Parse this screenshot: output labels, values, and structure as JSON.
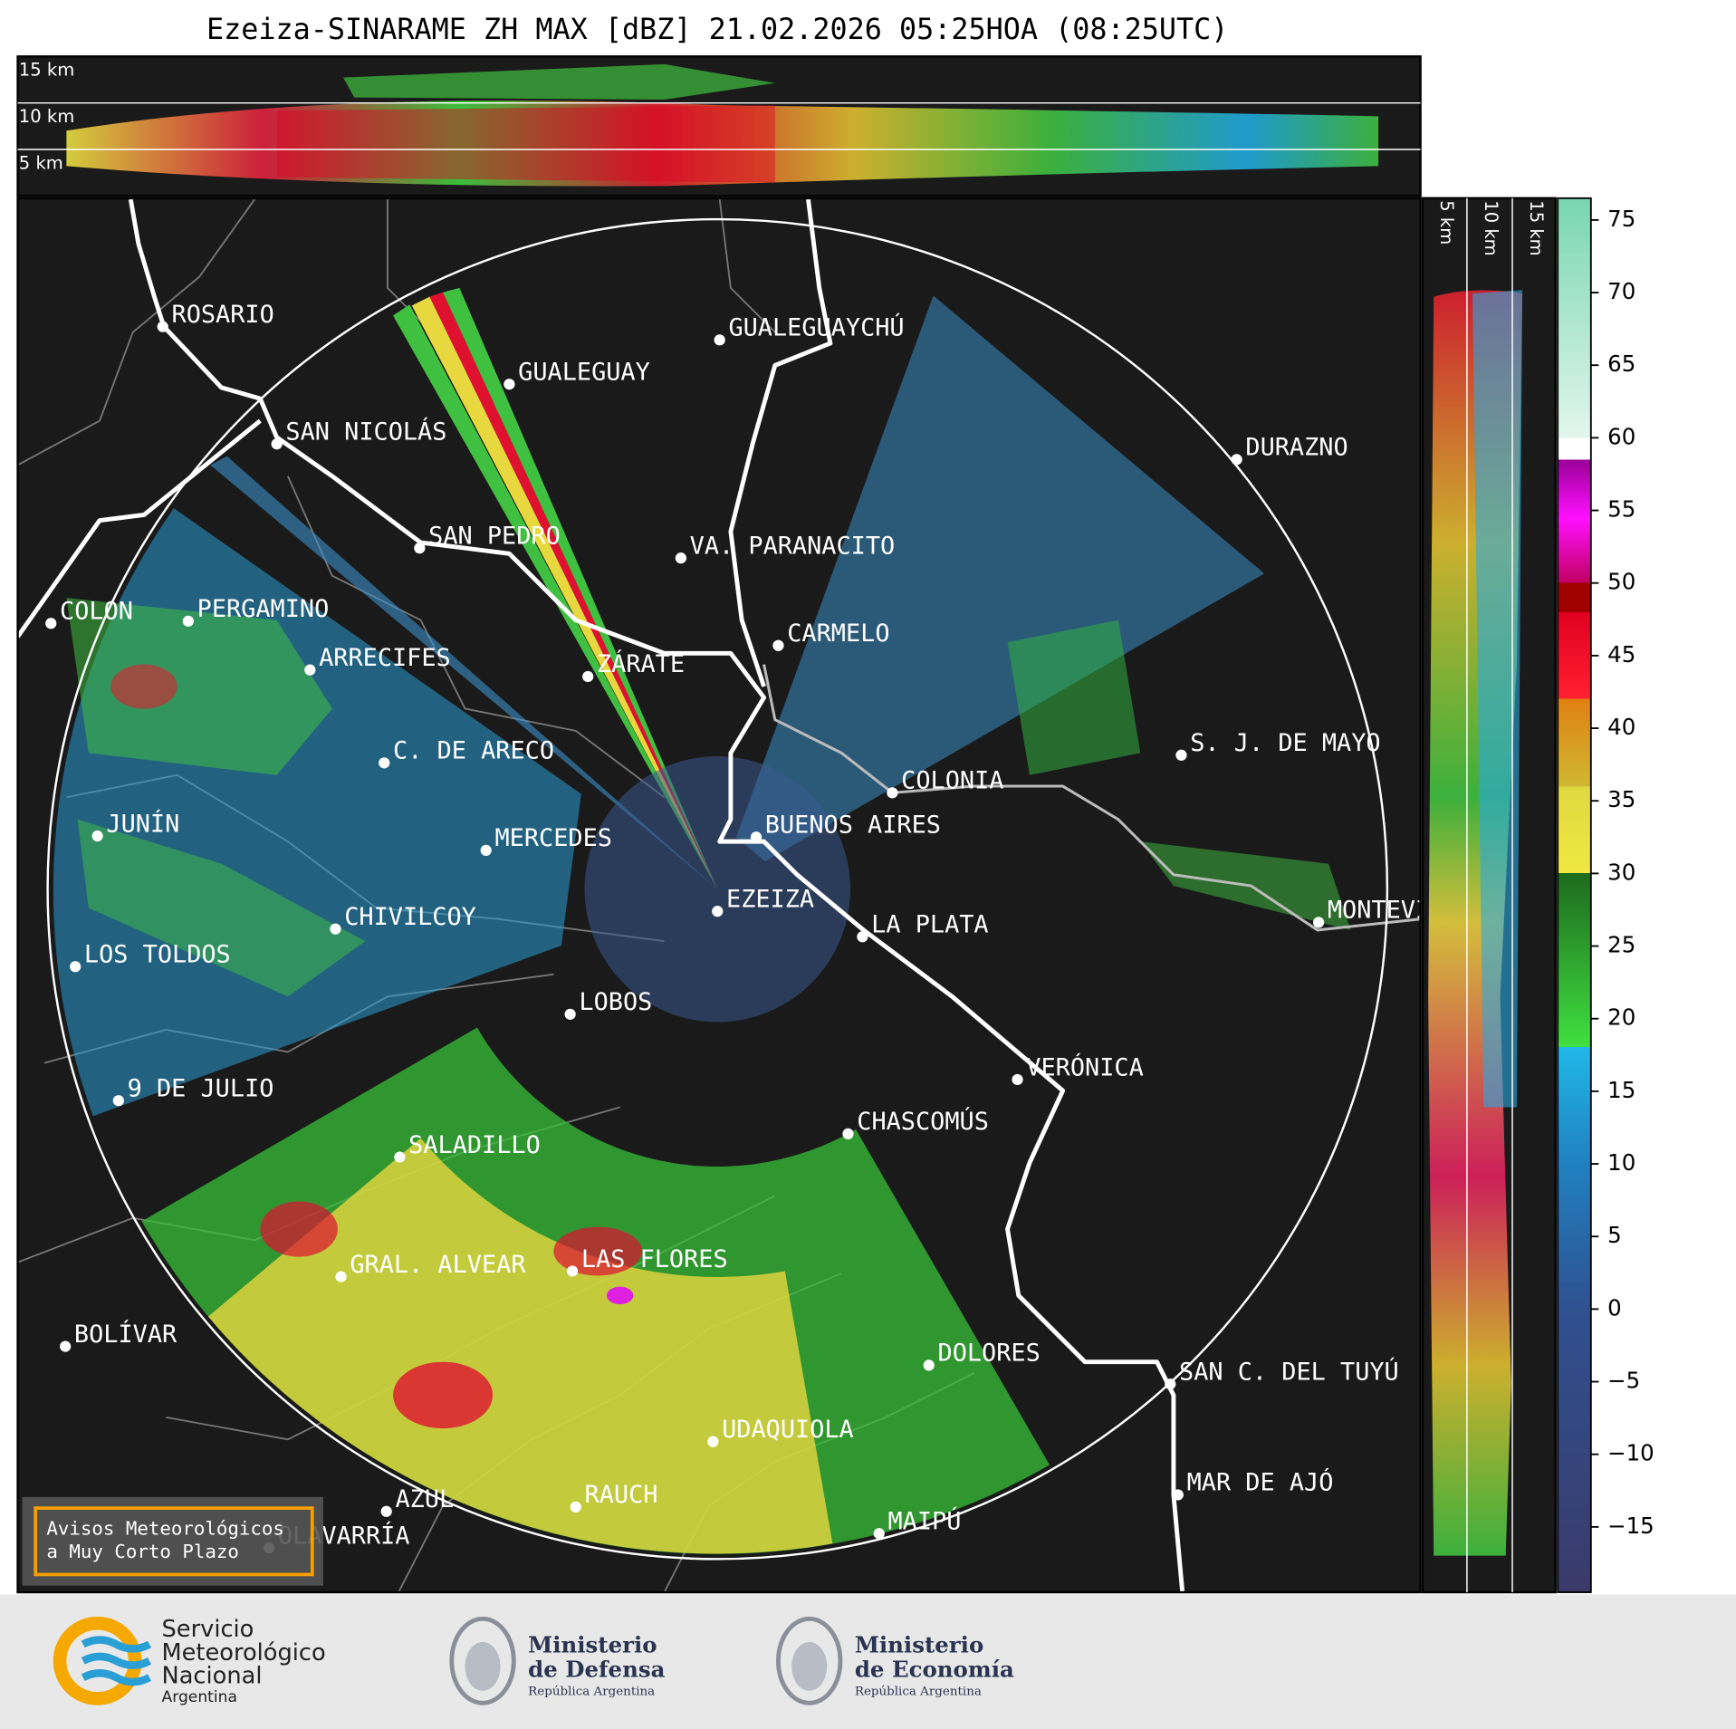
{
  "header": {
    "title": "Ezeiza-SINARAME ZH MAX [dBZ] 21.02.2026 05:25HOA (08:25UTC)"
  },
  "top_panel": {
    "height_labels": [
      "15 km",
      "10 km",
      "5 km"
    ]
  },
  "side_panel": {
    "height_labels": [
      "5 km",
      "10 km",
      "15 km"
    ]
  },
  "colorbar": {
    "range": [
      -19.5,
      76.5
    ],
    "ticks": [
      {
        "value": -15,
        "label": "−15"
      },
      {
        "value": -10,
        "label": "−10"
      },
      {
        "value": -5,
        "label": "−5"
      },
      0,
      5,
      10,
      15,
      20,
      25,
      30,
      35,
      40,
      45,
      50,
      55,
      60,
      65,
      70,
      75
    ]
  },
  "cities": [
    "ROSARIO",
    "GUALEGUAYCHÚ",
    "GUALEGUAY",
    "SAN NICOLÁS",
    "DURAZNO",
    "SAN PEDRO",
    "VA. PARANACITO",
    "COLON",
    "PERGAMINO",
    "CARMELO",
    "ARRECIFES",
    "ZÁRATE",
    "S. J. DE MAYO",
    "C. DE ARECO",
    "COLONIA",
    "BUENOS AIRES",
    "JUNÍN",
    "MERCEDES",
    "EZEIZA",
    "MONTEVIDEO",
    "CHIVILCOY",
    "LA PLATA",
    "LOS TOLDOS",
    "LOBOS",
    "VERÓNICA",
    "9 DE JULIO",
    "CHASCOMÚS",
    "SALADILLO",
    "GRAL. ALVEAR",
    "LAS FLORES",
    "BOLÍVAR",
    "DOLORES",
    "SAN C. DEL TUYÚ",
    "UDAQUIOLA",
    "MAR DE AJÓ",
    "AZUL",
    "RAUCH",
    "OLAVARRÍA",
    "MAIPÚ"
  ],
  "notice": {
    "lines": [
      "Avisos Meteorológicos",
      "a Muy Corto Plazo"
    ]
  },
  "footer": {
    "smn": [
      "Servicio",
      "Meteorológico",
      "Nacional",
      "Argentina"
    ],
    "defensa": [
      "Ministerio",
      "de Defensa",
      "República Argentina"
    ],
    "economia": [
      "Ministerio",
      "de Economía",
      "República Argentina"
    ]
  }
}
